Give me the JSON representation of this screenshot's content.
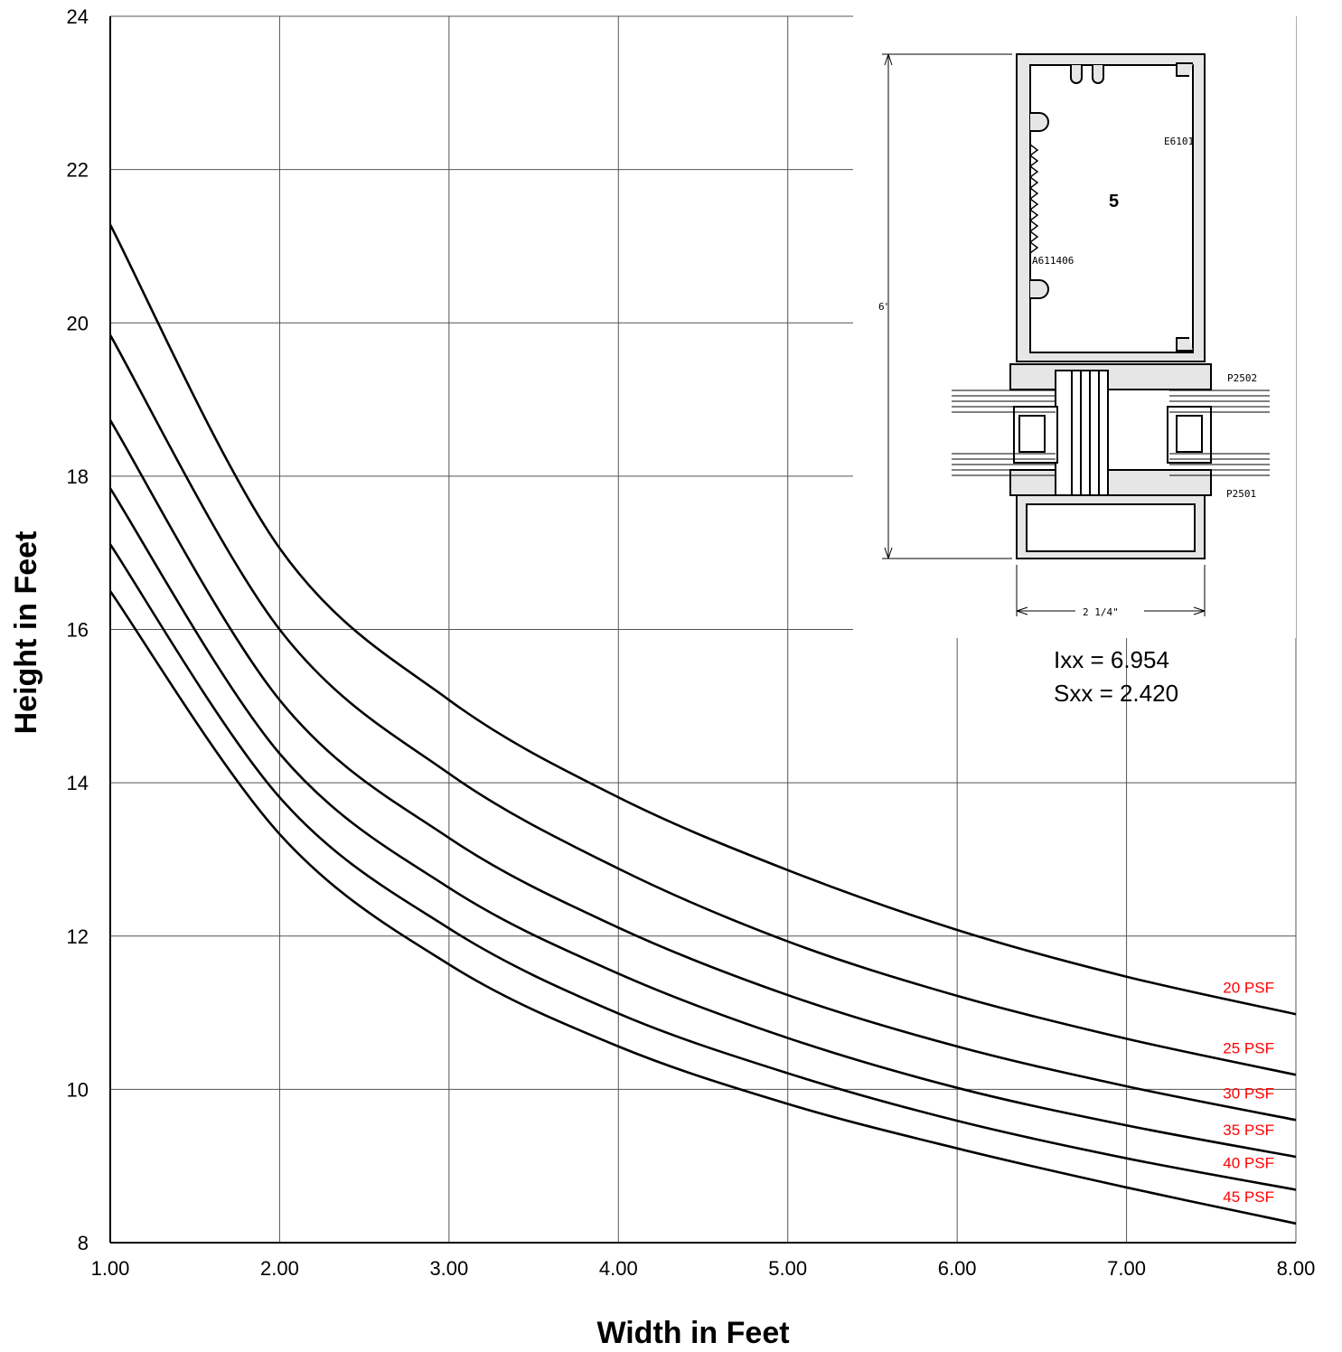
{
  "chart_data": {
    "type": "line",
    "xlabel": "Width in Feet",
    "ylabel": "Height in Feet",
    "xlim": [
      1,
      8
    ],
    "ylim": [
      8,
      24
    ],
    "x_ticks": [
      "1.00",
      "2.00",
      "3.00",
      "4.00",
      "5.00",
      "6.00",
      "7.00",
      "8.00"
    ],
    "y_ticks": [
      "8",
      "10",
      "12",
      "14",
      "16",
      "18",
      "20",
      "22",
      "24"
    ],
    "grid": true,
    "label_color": "#ff0000",
    "line_color": "#000000",
    "x": [
      1,
      2,
      3,
      4,
      5,
      6,
      7,
      8
    ],
    "series": [
      {
        "name": "20 PSF",
        "values": [
          21.28,
          17.06,
          15.08,
          13.81,
          12.86,
          12.08,
          11.47,
          10.98
        ]
      },
      {
        "name": "25 PSF",
        "values": [
          19.84,
          16.0,
          14.12,
          12.88,
          11.93,
          11.22,
          10.66,
          10.19
        ]
      },
      {
        "name": "30 PSF",
        "values": [
          18.73,
          15.08,
          13.28,
          12.11,
          11.23,
          10.56,
          10.04,
          9.6
        ]
      },
      {
        "name": "35 PSF",
        "values": [
          17.84,
          14.38,
          12.63,
          11.51,
          10.67,
          10.02,
          9.53,
          9.12
        ]
      },
      {
        "name": "40 PSF",
        "values": [
          17.11,
          13.81,
          12.1,
          10.99,
          10.21,
          9.59,
          9.1,
          8.69
        ]
      },
      {
        "name": "45 PSF",
        "values": [
          16.5,
          13.33,
          11.63,
          10.56,
          9.81,
          9.23,
          8.72,
          8.25
        ]
      }
    ]
  },
  "inset": {
    "profile_number": "5",
    "part_labels": [
      "E6101",
      "A611406",
      "P2502",
      "P2501"
    ],
    "height_dim": "6\"",
    "width_dim": "2 1/4\"",
    "ixx": "Ixx = 6.954",
    "sxx": "Sxx = 2.420"
  }
}
